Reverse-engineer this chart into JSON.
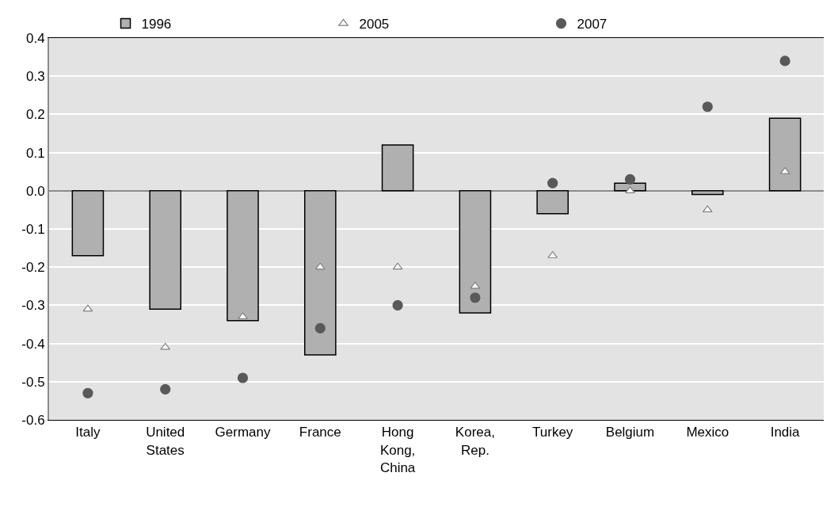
{
  "chart_data": {
    "type": "bar",
    "categories": [
      "Italy",
      "United States",
      "Germany",
      "France",
      "Hong Kong, China",
      "Korea, Rep.",
      "Turkey",
      "Belgium",
      "Mexico",
      "India"
    ],
    "series": [
      {
        "name": "1996",
        "color": "#b0b0b0",
        "values": [
          -0.17,
          -0.31,
          -0.34,
          -0.43,
          0.12,
          -0.32,
          -0.06,
          0.02,
          -0.01,
          0.19
        ]
      },
      {
        "name": "2005",
        "type": "scatter",
        "marker": "triangle",
        "color": "#ffffff",
        "values": [
          -0.31,
          -0.41,
          -0.33,
          -0.2,
          -0.2,
          -0.25,
          -0.17,
          0.0,
          -0.05,
          0.05
        ]
      },
      {
        "name": "2007",
        "type": "scatter",
        "marker": "circle",
        "color": "#595959",
        "values": [
          -0.53,
          -0.52,
          -0.49,
          -0.36,
          -0.3,
          -0.28,
          0.02,
          0.03,
          0.22,
          0.34
        ]
      }
    ],
    "ylim": [
      -0.6,
      0.4
    ],
    "yticks": [
      {
        "value": -0.6,
        "label": "-0.6"
      },
      {
        "value": -0.5,
        "label": "-0.5"
      },
      {
        "value": -0.4,
        "label": "-0.4"
      },
      {
        "value": -0.3,
        "label": "-0.3"
      },
      {
        "value": -0.2,
        "label": "-0.2"
      },
      {
        "value": -0.1,
        "label": "-0.1"
      },
      {
        "value": 0.0,
        "label": "0.0"
      },
      {
        "value": 0.1,
        "label": "0.1"
      },
      {
        "value": 0.2,
        "label": "0.2"
      },
      {
        "value": 0.3,
        "label": "0.3"
      },
      {
        "value": 0.4,
        "label": "0.4"
      }
    ],
    "grid": "y",
    "legend": "top"
  }
}
